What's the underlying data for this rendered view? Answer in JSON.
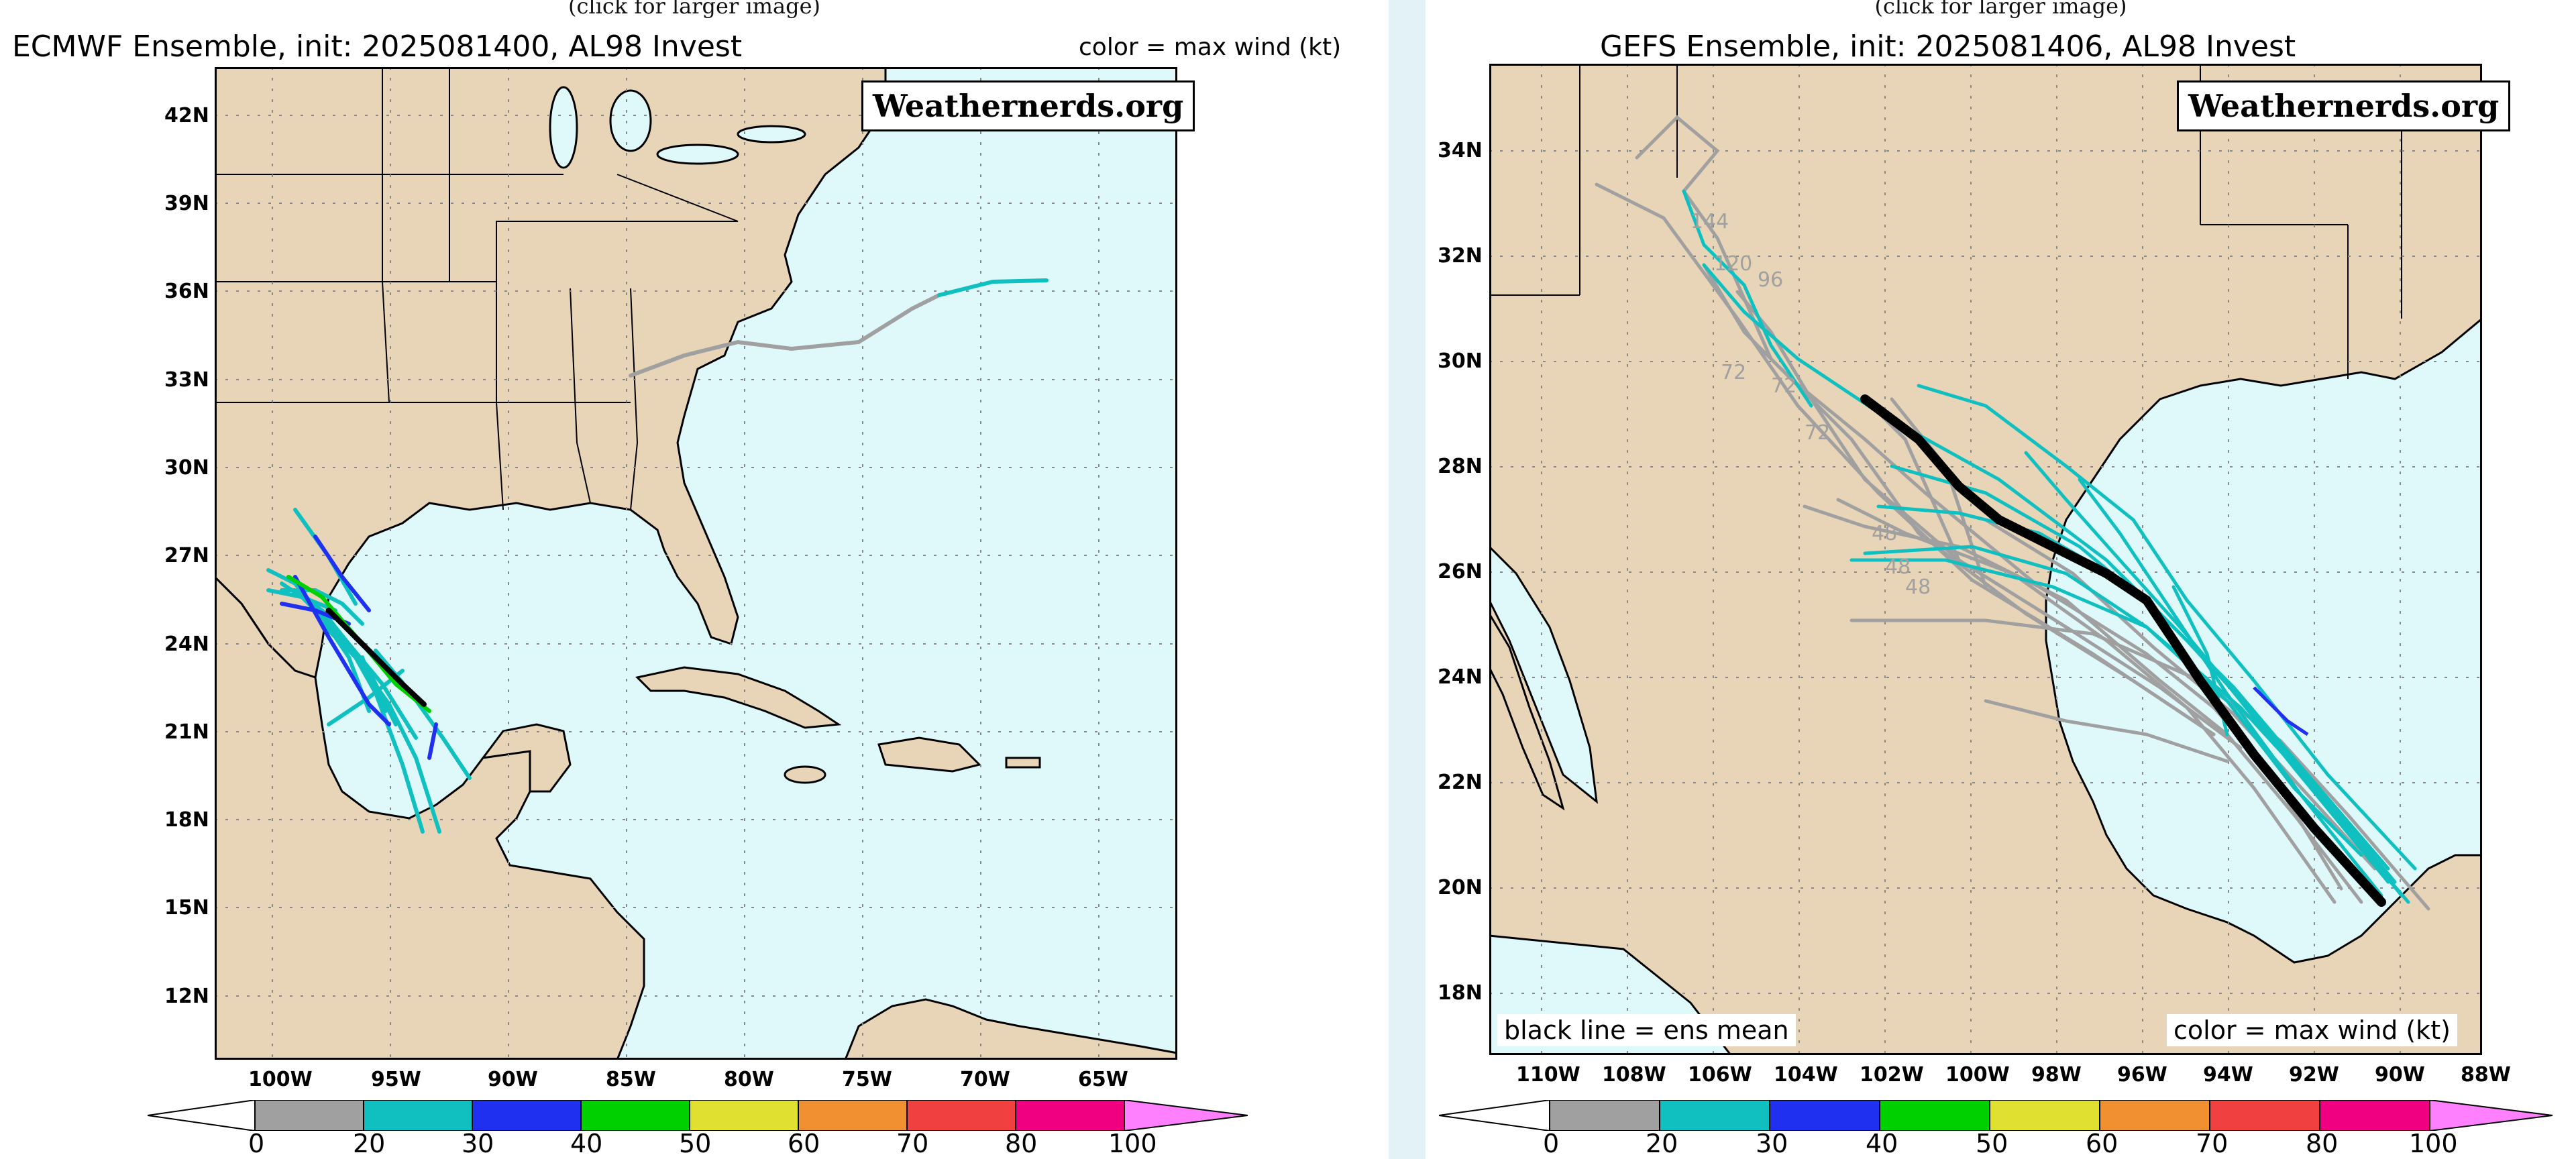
{
  "left_panel": {
    "caption": "(click for larger image)",
    "title": "ECMWF Ensemble, init: 2025081400, AL98 Invest",
    "color_note": "color = max wind (kt)",
    "brand": "Weathernerds.org",
    "lat_labels": [
      "42N",
      "39N",
      "36N",
      "33N",
      "30N",
      "27N",
      "24N",
      "21N",
      "18N",
      "15N",
      "12N"
    ],
    "lon_labels": [
      "100W",
      "95W",
      "90W",
      "85W",
      "80W",
      "75W",
      "70W",
      "65W"
    ]
  },
  "right_panel": {
    "caption": "(click for larger image)",
    "title": "GEFS Ensemble, init: 2025081406, AL98 Invest",
    "brand": "Weathernerds.org",
    "mean_note": "black line = ens mean",
    "color_note": "color = max wind (kt)",
    "lat_labels": [
      "34N",
      "32N",
      "30N",
      "28N",
      "26N",
      "24N",
      "22N",
      "20N",
      "18N"
    ],
    "lon_labels": [
      "110W",
      "108W",
      "106W",
      "104W",
      "102W",
      "100W",
      "98W",
      "96W",
      "94W",
      "92W",
      "90W",
      "88W"
    ],
    "hour_labels": [
      "144",
      "120",
      "96",
      "72",
      "72",
      "72",
      "48",
      "48",
      "48"
    ]
  },
  "colorbar": {
    "ticks": [
      "0",
      "20",
      "30",
      "40",
      "50",
      "60",
      "70",
      "80",
      "100"
    ],
    "colors": [
      "#a0a0a0",
      "#10c0c0",
      "#2030f0",
      "#00d000",
      "#e0e030",
      "#f09030",
      "#f04040",
      "#f00080"
    ],
    "under_color": "#ffffff",
    "over_color": "#ff80ff"
  },
  "colors": {
    "land": "#e8d5b7",
    "ocean": "#dff9fb",
    "border": "#000000",
    "grid": "#888888",
    "mean": "#000000"
  }
}
